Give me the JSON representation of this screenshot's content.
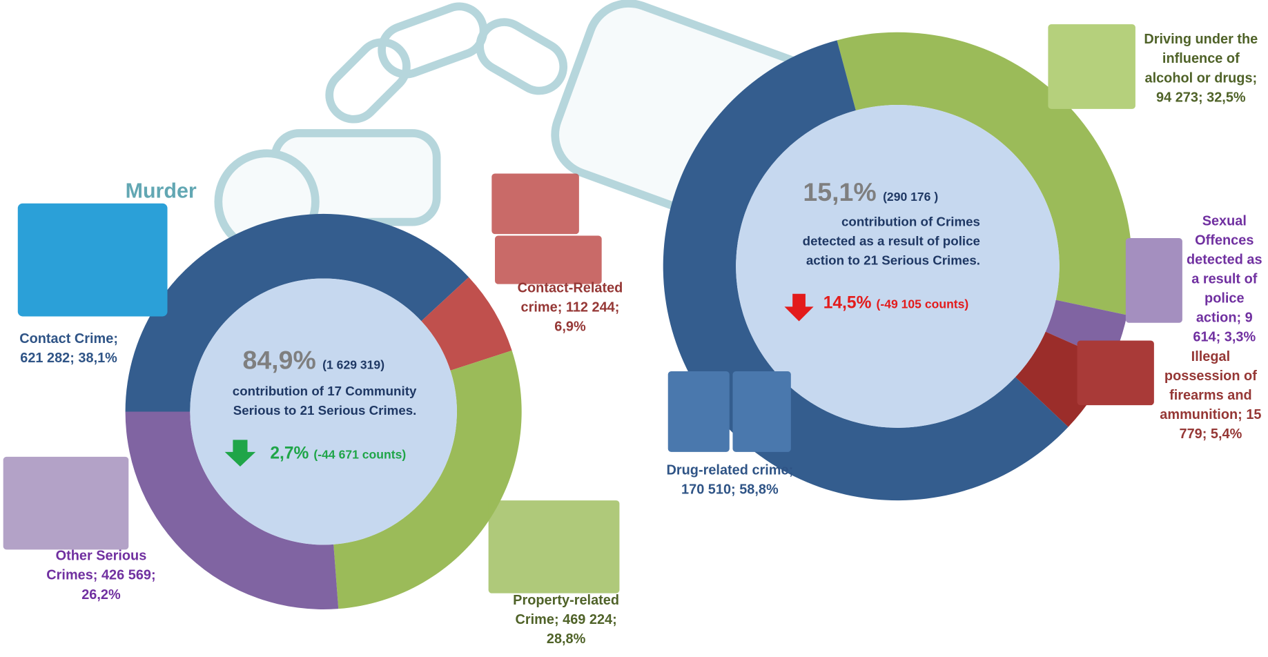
{
  "background_label": "Murder",
  "chart_data": [
    {
      "type": "pie",
      "categories": [
        "Contact Crime; 621 282; 38,1%",
        "Contact-Related crime; 112 244; 6,9%",
        "Property-related Crime; 469 224; 28,8%",
        "Other Serious Crimes; 426 569; 26,2%"
      ],
      "values": [
        38.1,
        6.9,
        28.8,
        26.2
      ],
      "colors": [
        "#345d8e",
        "#c0504d",
        "#9bbb59",
        "#8064a2"
      ],
      "center_value": "84,9%",
      "center_count": "(1 629 319)",
      "center_text": "contribution of 17 Community Serious to 21 Serious Crimes.",
      "change_value": "2,7%",
      "change_count": "(-44 671 counts)"
    },
    {
      "type": "pie",
      "categories": [
        "Driving under the influence of alcohol or drugs; 94 273; 32,5%",
        "Sexual Offences detected as a result of police action; 9 614; 3,3%",
        "Illegal possession of firearms and ammunition; 15 779; 5,4%",
        "Drug-related crime; 170 510; 58,8%"
      ],
      "values": [
        32.5,
        3.3,
        5.4,
        58.8
      ],
      "colors": [
        "#9bbb59",
        "#8064a2",
        "#9b2d2a",
        "#345d8e"
      ],
      "center_value": "15,1%",
      "center_count": "(290 176 )",
      "center_text": "contribution of Crimes detected as a result of police action to 21 Serious Crimes.",
      "change_value": "14,5%",
      "change_count": "(-49 105 counts)"
    }
  ]
}
